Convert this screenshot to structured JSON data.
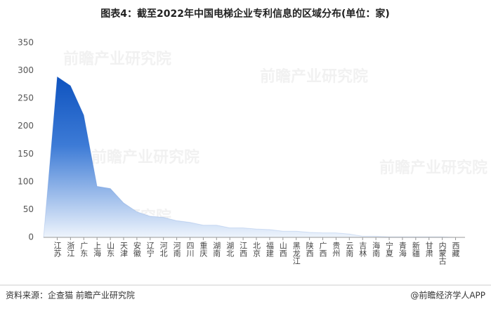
{
  "chart_data": {
    "type": "area",
    "title": "图表4：截至2022年中国电梯企业专利信息的区域分布(单位：家)",
    "categories": [
      "江苏",
      "浙江",
      "广东",
      "上海",
      "山东",
      "天津",
      "安徽",
      "辽宁",
      "河北",
      "河南",
      "四川",
      "重庆",
      "湖南",
      "湖北",
      "江西",
      "北京",
      "福建",
      "山西",
      "黑龙江",
      "陕西",
      "广西",
      "贵州",
      "云南",
      "吉林",
      "海南",
      "宁夏",
      "青海",
      "新疆",
      "甘肃",
      "内蒙古",
      "西藏"
    ],
    "values": [
      289,
      273,
      220,
      92,
      88,
      62,
      46,
      38,
      36,
      30,
      27,
      22,
      22,
      17,
      17,
      15,
      14,
      11,
      11,
      9,
      8,
      8,
      6,
      2,
      2,
      1,
      1,
      1,
      1,
      1,
      0
    ],
    "color": "#1657c4",
    "ylim": [
      0,
      350
    ],
    "yticks": [
      0,
      50,
      100,
      150,
      200,
      250,
      300,
      350
    ],
    "source": "资料来源：企查猫 前瞻产业研究院",
    "credit": "@前瞻经济学人APP",
    "watermark": "前瞻产业研究院"
  }
}
